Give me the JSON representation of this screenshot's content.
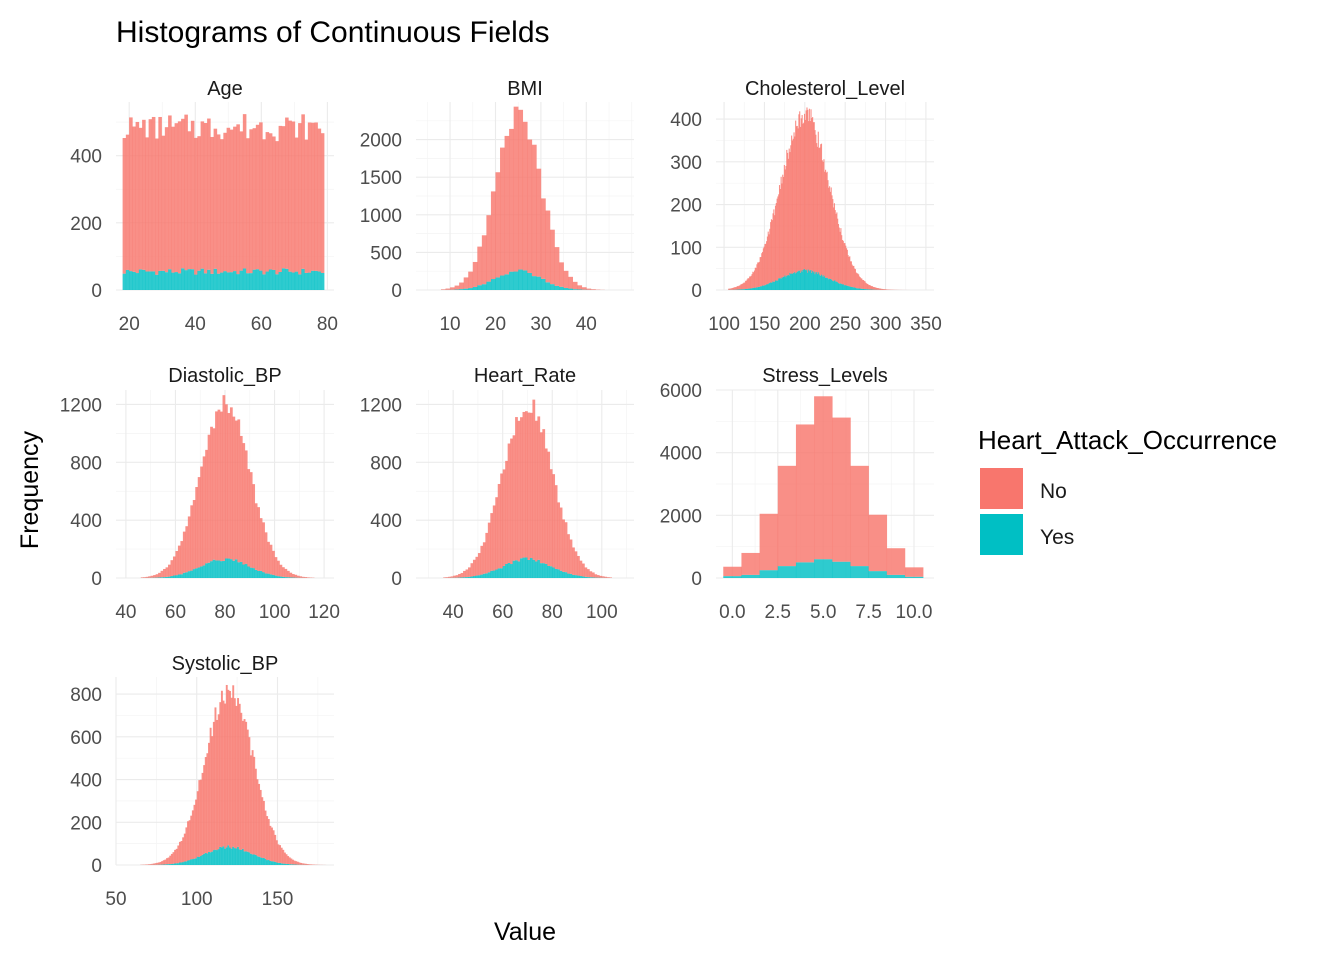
{
  "chart_data": {
    "type": "bar",
    "title": "Histograms of Continuous Fields",
    "xlabel": "Value",
    "ylabel": "Frequency",
    "stacked": true,
    "grid": true,
    "legend": {
      "title": "Heart_Attack_Occurrence",
      "placement": "right",
      "items": [
        {
          "label": "No",
          "color": "#F8766D"
        },
        {
          "label": "Yes",
          "color": "#00BFC4"
        }
      ]
    },
    "colors": {
      "No": "#F8766D",
      "Yes": "#00BFC4"
    },
    "panels": [
      {
        "name": "Age",
        "xlim": [
          16,
          82
        ],
        "ylim": [
          0,
          560
        ],
        "x_ticks": [
          20,
          40,
          60,
          80
        ],
        "y_ticks": [
          0,
          200,
          400
        ],
        "dist": "uniform",
        "x_range": [
          18,
          79
        ],
        "bins": 62,
        "no_peak": 430,
        "yes_peak": 55
      },
      {
        "name": "BMI",
        "xlim": [
          2.5,
          50.5
        ],
        "ylim": [
          0,
          2500
        ],
        "x_ticks": [
          10,
          20,
          30,
          40
        ],
        "y_ticks": [
          0,
          500,
          1000,
          1500,
          2000
        ],
        "dist": "normal",
        "mean": 25,
        "sd": 5,
        "x_range": [
          8,
          44
        ],
        "bin_width": 1,
        "no_peak": 2100,
        "yes_peak": 250
      },
      {
        "name": "Cholesterol_Level",
        "xlim": [
          90,
          360
        ],
        "ylim": [
          0,
          440
        ],
        "x_ticks": [
          100,
          150,
          200,
          250,
          300,
          350
        ],
        "y_ticks": [
          0,
          100,
          200,
          300,
          400
        ],
        "dist": "normal",
        "mean": 200,
        "sd": 30,
        "x_range": [
          105,
          330
        ],
        "bin_width": 1,
        "no_peak": 365,
        "yes_peak": 45
      },
      {
        "name": "Diastolic_BP",
        "xlim": [
          36,
          124
        ],
        "ylim": [
          0,
          1300
        ],
        "x_ticks": [
          40,
          60,
          80,
          100,
          120
        ],
        "y_ticks": [
          0,
          400,
          800,
          1200
        ],
        "dist": "normal",
        "mean": 80,
        "sd": 10,
        "x_range": [
          46,
          116
        ],
        "bin_width": 1,
        "no_peak": 1080,
        "yes_peak": 130
      },
      {
        "name": "Heart_Rate",
        "xlim": [
          25,
          113
        ],
        "ylim": [
          0,
          1300
        ],
        "x_ticks": [
          40,
          60,
          80,
          100
        ],
        "y_ticks": [
          0,
          400,
          800,
          1200
        ],
        "dist": "normal",
        "mean": 70,
        "sd": 10,
        "x_range": [
          36,
          104
        ],
        "bin_width": 1,
        "no_peak": 1080,
        "yes_peak": 130
      },
      {
        "name": "Stress_Levels",
        "xlim": [
          -0.9,
          11.1
        ],
        "ylim": [
          0,
          6000
        ],
        "x_ticks": [
          0.0,
          2.5,
          5.0,
          7.5,
          10.0
        ],
        "y_ticks": [
          0,
          2000,
          4000,
          6000
        ],
        "dist": "bars",
        "bin_width": 1,
        "x": [
          0,
          1,
          2,
          3,
          4,
          5,
          6,
          7,
          8,
          9,
          10
        ],
        "no": [
          300,
          700,
          1800,
          3200,
          4400,
          5200,
          4600,
          3200,
          1800,
          850,
          300
        ],
        "yes": [
          60,
          100,
          250,
          380,
          500,
          600,
          520,
          380,
          220,
          100,
          40
        ]
      },
      {
        "name": "Systolic_BP",
        "xlim": [
          50,
          185
        ],
        "ylim": [
          0,
          880
        ],
        "x_ticks": [
          50,
          100,
          150
        ],
        "y_ticks": [
          0,
          200,
          400,
          600,
          800
        ],
        "dist": "normal",
        "mean": 120,
        "sd": 15,
        "x_range": [
          65,
          180
        ],
        "bin_width": 1,
        "no_peak": 735,
        "yes_peak": 85
      }
    ]
  }
}
